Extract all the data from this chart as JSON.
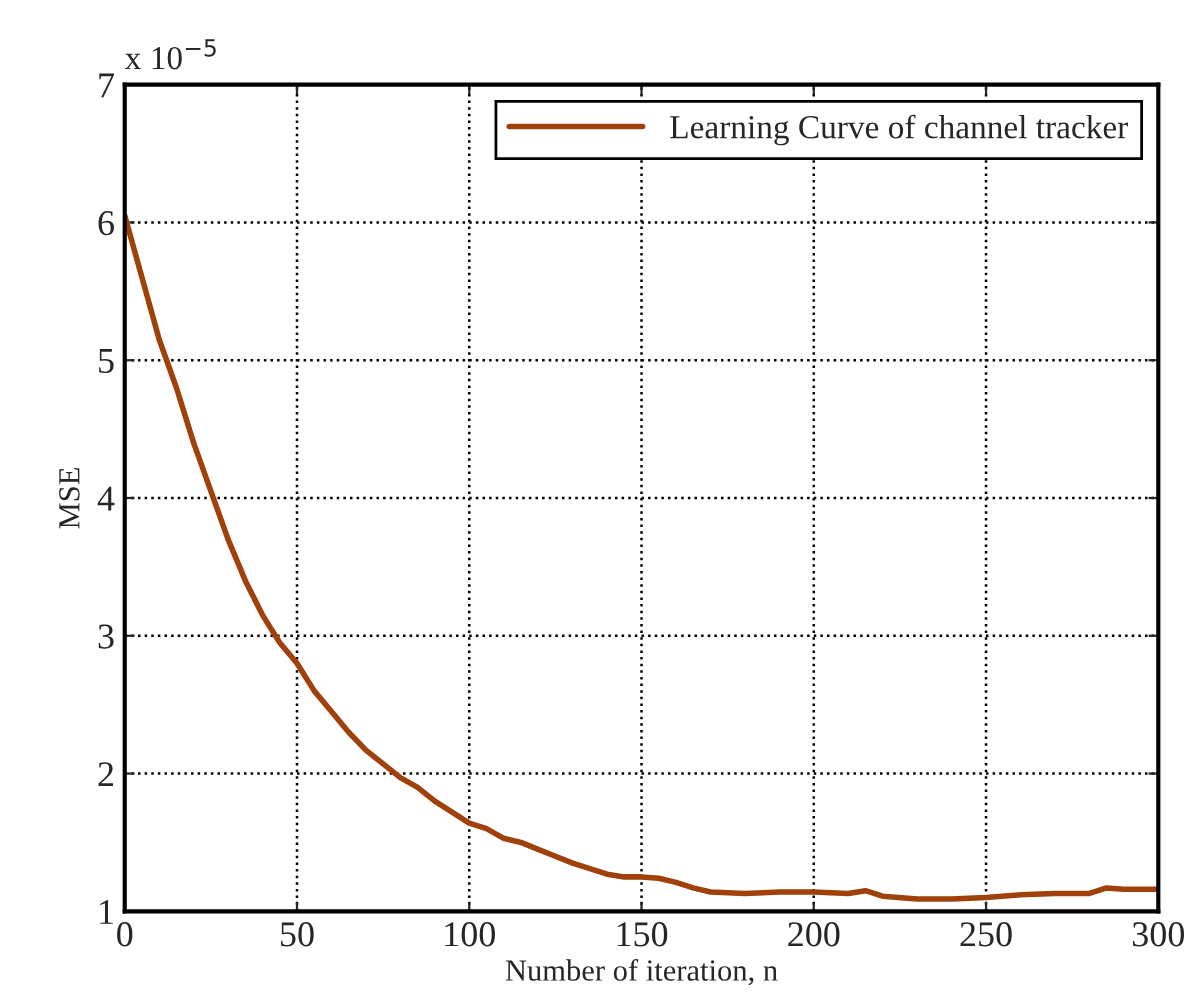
{
  "chart_data": {
    "type": "line",
    "xlabel": "Number of iteration, n",
    "ylabel": "MSE",
    "annotations": [
      "x 10$^{−5}$"
    ],
    "x": [
      0,
      5,
      10,
      15,
      20,
      25,
      30,
      35,
      40,
      45,
      50,
      55,
      60,
      65,
      70,
      75,
      80,
      85,
      90,
      95,
      100,
      105,
      110,
      115,
      120,
      125,
      130,
      135,
      140,
      145,
      150,
      155,
      160,
      165,
      170,
      180,
      190,
      200,
      210,
      215,
      220,
      230,
      240,
      250,
      260,
      270,
      280,
      285,
      290,
      300
    ],
    "series": [
      {
        "name": "Learning Curve of channel tracker",
        "color": "#a0400a",
        "values": [
          6.05,
          5.6,
          5.15,
          4.8,
          4.4,
          4.05,
          3.7,
          3.4,
          3.15,
          2.95,
          2.8,
          2.6,
          2.45,
          2.3,
          2.17,
          2.07,
          1.97,
          1.9,
          1.8,
          1.72,
          1.64,
          1.6,
          1.53,
          1.5,
          1.45,
          1.4,
          1.35,
          1.31,
          1.27,
          1.25,
          1.25,
          1.24,
          1.21,
          1.17,
          1.14,
          1.13,
          1.14,
          1.14,
          1.13,
          1.15,
          1.11,
          1.09,
          1.09,
          1.1,
          1.12,
          1.13,
          1.13,
          1.17,
          1.16,
          1.16
        ]
      }
    ],
    "xlim": [
      0,
      300
    ],
    "xticks": [
      0,
      50,
      100,
      150,
      200,
      250,
      300
    ],
    "ylim": [
      1,
      7
    ],
    "yticks": [
      1,
      2,
      3,
      4,
      5,
      6,
      7
    ],
    "grid": true,
    "legend": "top right",
    "line_style": "solid",
    "marker": "none"
  }
}
